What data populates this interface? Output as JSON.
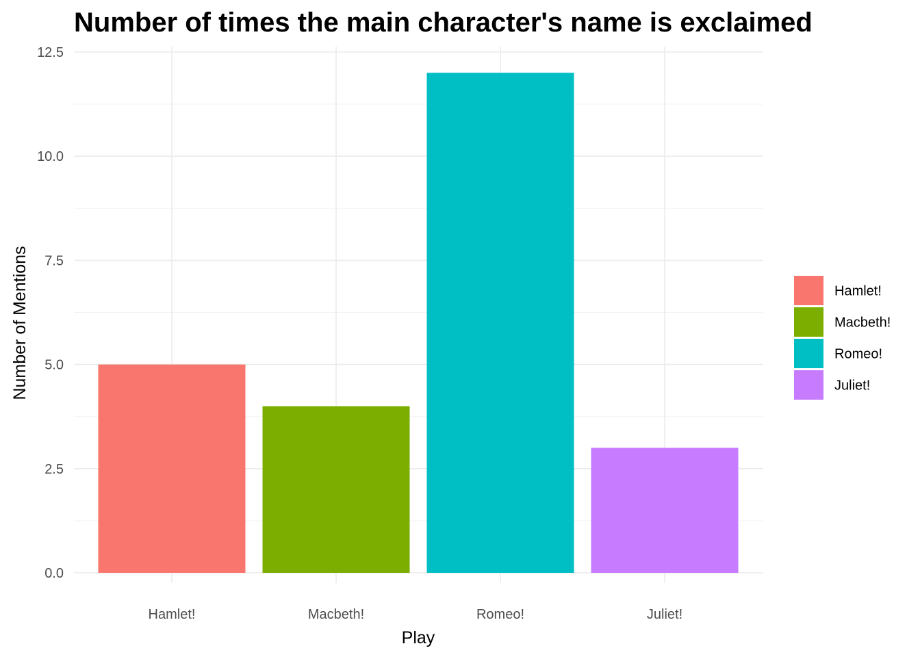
{
  "chart_data": {
    "type": "bar",
    "title": "Number of times the main character's name is exclaimed",
    "xlabel": "Play",
    "ylabel": "Number of Mentions",
    "categories": [
      "Hamlet!",
      "Macbeth!",
      "Romeo!",
      "Juliet!"
    ],
    "values": [
      5,
      4,
      12,
      3
    ],
    "colors": [
      "#F8766D",
      "#7CAE00",
      "#00BFC4",
      "#C77CFF"
    ],
    "ylim": [
      0,
      12.5
    ],
    "yticks": [
      0,
      2.5,
      5,
      7.5,
      10,
      12.5
    ],
    "ytick_labels": [
      "0.0",
      "2.5",
      "5.0",
      "7.5",
      "10.0",
      "12.5"
    ],
    "grid": true,
    "legend": {
      "placement": "right",
      "entries": [
        "Hamlet!",
        "Macbeth!",
        "Romeo!",
        "Juliet!"
      ]
    }
  }
}
